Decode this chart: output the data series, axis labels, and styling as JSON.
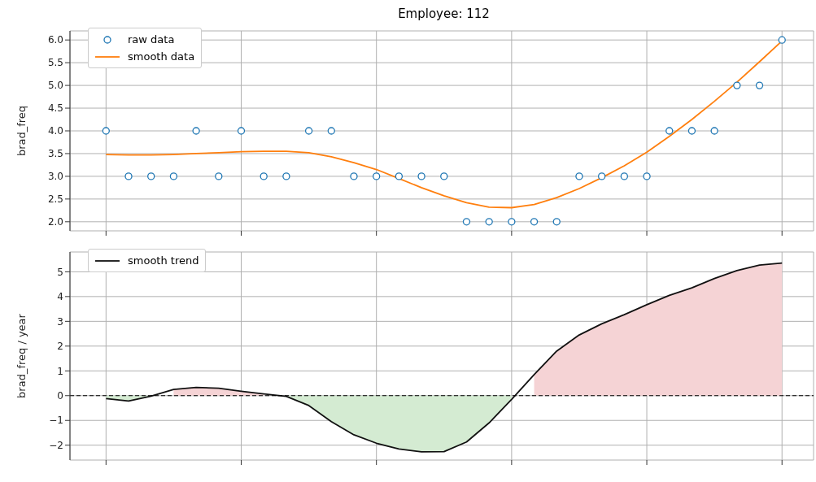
{
  "chart_data": [
    {
      "type": "scatter",
      "title": "Employee: 112",
      "ylabel": "brad_freq",
      "categories": [
        null,
        null,
        null,
        null,
        null,
        null,
        null,
        null,
        null,
        null,
        null,
        null,
        null,
        null,
        null,
        null,
        null,
        null,
        null,
        null,
        null,
        null,
        null,
        null,
        null,
        null,
        null,
        null,
        null,
        null,
        null
      ],
      "ylim": [
        1.8,
        6.2
      ],
      "yticks": [
        {
          "value": 2,
          "label": "2.0"
        },
        {
          "value": 2.5,
          "label": "2.5"
        },
        {
          "value": 3,
          "label": "3.0"
        },
        {
          "value": 3.5,
          "label": "3.5"
        },
        {
          "value": 4,
          "label": "4.0"
        },
        {
          "value": 4.5,
          "label": "4.5"
        },
        {
          "value": 5,
          "label": "5.0"
        },
        {
          "value": 5.5,
          "label": "5.5"
        },
        {
          "value": 6,
          "label": "6.0"
        }
      ],
      "grid": true,
      "legend": "top left",
      "series": [
        {
          "name": "raw data",
          "marker": "circle",
          "color": "#1f77b4",
          "values": [
            4,
            3,
            3,
            3,
            4,
            3,
            4,
            3,
            3,
            4,
            4,
            3,
            3,
            3,
            3,
            3,
            2,
            2,
            2,
            2,
            2,
            3,
            3,
            3,
            3,
            4,
            4,
            4,
            5,
            5,
            6
          ]
        },
        {
          "name": "smooth data",
          "type": "line",
          "color": "#ff7f0e",
          "values": [
            3.48,
            3.47,
            3.47,
            3.48,
            3.5,
            3.52,
            3.54,
            3.55,
            3.55,
            3.52,
            3.43,
            3.3,
            3.15,
            2.95,
            2.75,
            2.57,
            2.42,
            2.32,
            2.31,
            2.38,
            2.53,
            2.73,
            2.97,
            3.23,
            3.53,
            3.88,
            4.25,
            4.65,
            5.07,
            5.52,
            5.98
          ]
        }
      ]
    },
    {
      "type": "line",
      "ylabel": "brad_freq / year",
      "categories": [
        null,
        null,
        null,
        null,
        null,
        null,
        null,
        null,
        null,
        null,
        null,
        null,
        null,
        null,
        null,
        null,
        null,
        null,
        null,
        null,
        null,
        null,
        null,
        null,
        null,
        null,
        null,
        null,
        null,
        null,
        null
      ],
      "ylim": [
        -2.6,
        5.8
      ],
      "yticks": [
        {
          "value": -2,
          "label": "−2"
        },
        {
          "value": -1,
          "label": "−1"
        },
        0,
        1,
        2,
        3,
        4,
        5
      ],
      "grid": true,
      "legend": "top left",
      "ref_lines": [
        {
          "axis": "y",
          "value": 0,
          "color": "#000000",
          "line_style": "dashed"
        }
      ],
      "series": [
        {
          "type": "area",
          "color": "#d4ebd2",
          "values": [
            -0.12,
            -0.22,
            -0.02,
            null,
            null,
            null,
            null,
            null,
            -0.03,
            -0.4,
            -1.05,
            -1.58,
            -1.92,
            -2.15,
            -2.27,
            -2.26,
            -1.87,
            -1.1,
            -0.15,
            null,
            null,
            null,
            null,
            null,
            null,
            null,
            null,
            null,
            null,
            null,
            null
          ]
        },
        {
          "type": "area",
          "color": "#f5d3d5",
          "values": [
            null,
            null,
            null,
            0.25,
            0.33,
            0.3,
            0.18,
            0.07,
            null,
            null,
            null,
            null,
            null,
            null,
            null,
            null,
            null,
            null,
            null,
            0.85,
            1.8,
            2.45,
            2.9,
            3.27,
            3.67,
            4.05,
            4.35,
            4.73,
            5.05,
            5.27,
            5.35
          ]
        },
        {
          "name": "smooth trend",
          "color": "#111111",
          "values": [
            -0.12,
            -0.22,
            -0.02,
            0.25,
            0.33,
            0.3,
            0.18,
            0.07,
            -0.03,
            -0.4,
            -1.05,
            -1.58,
            -1.92,
            -2.15,
            -2.27,
            -2.26,
            -1.87,
            -1.1,
            -0.15,
            0.85,
            1.8,
            2.45,
            2.9,
            3.27,
            3.67,
            4.05,
            4.35,
            4.73,
            5.05,
            5.27,
            5.35
          ]
        }
      ]
    }
  ]
}
